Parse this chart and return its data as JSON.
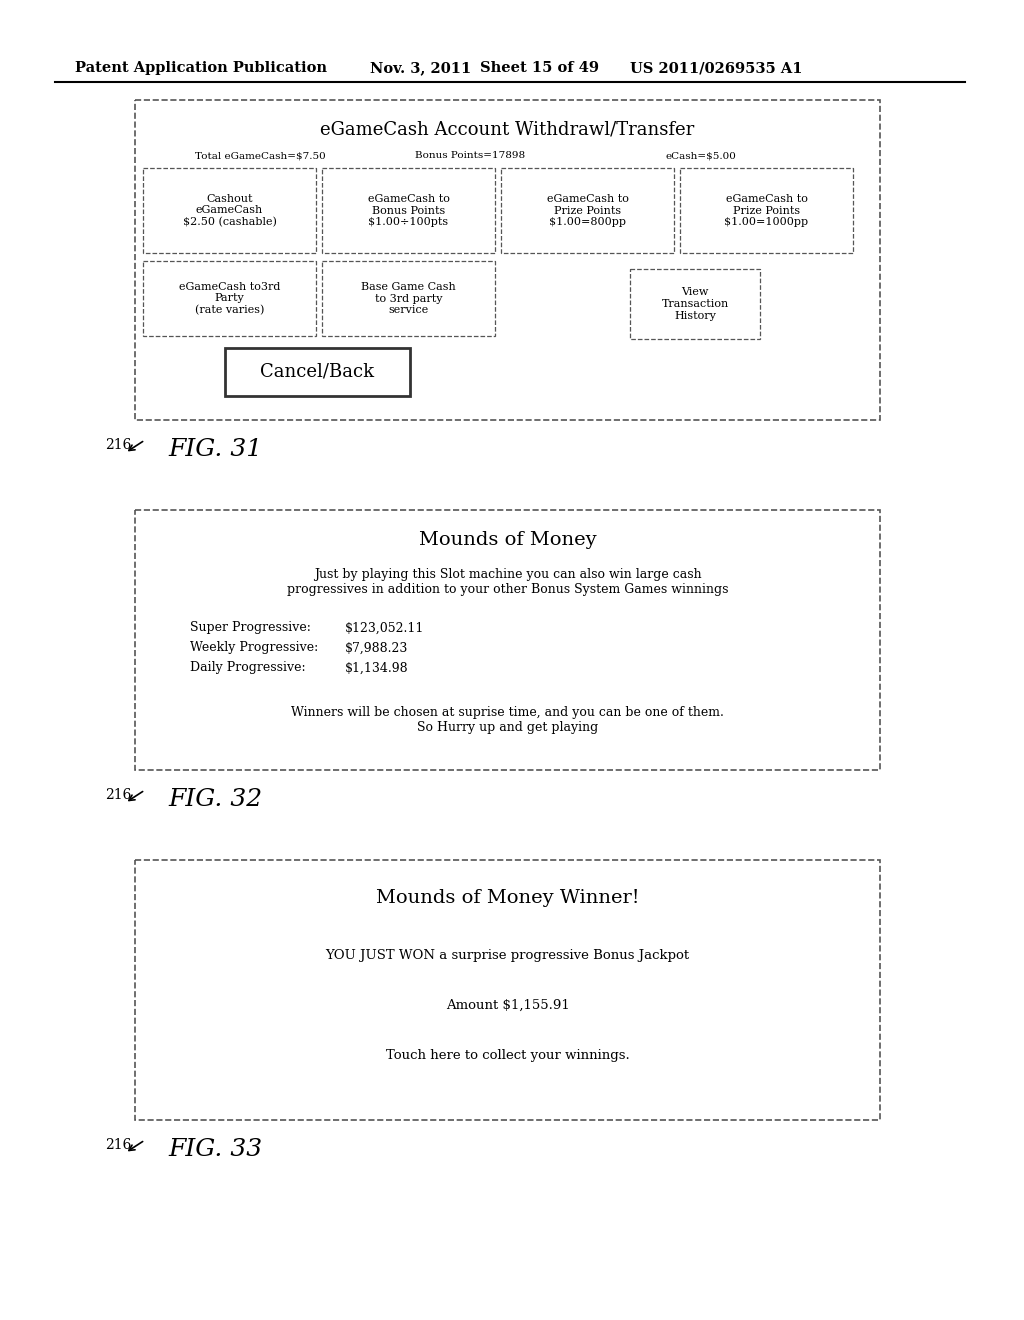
{
  "bg_color": "#ffffff",
  "header_text": "Patent Application Publication",
  "header_date": "Nov. 3, 2011",
  "header_sheet": "Sheet 15 of 49",
  "header_patent": "US 2011/0269535 A1",
  "fig31": {
    "label": "216",
    "fig_label": "FIG. 31",
    "title": "eGameCash Account Withdrawl/Transfer",
    "subtitle_left": "Total eGameCash=$7.50",
    "subtitle_mid": "Bonus Points=17898",
    "subtitle_right": "eCash=$5.00",
    "buttons_row1": [
      "Cashout\neGameCash\n$2.50 (cashable)",
      "eGameCash to\nBonus Points\n$1.00÷100pts",
      "eGameCash to\nPrize Points\n$1.00=800pp",
      "eGameCash to\nPrize Points\n$1.00=1000pp"
    ],
    "buttons_row2": [
      "eGameCash to3rd\nParty\n(rate varies)",
      "Base Game Cash\nto 3rd party\nservice"
    ],
    "cancel_btn": "Cancel/Back",
    "view_btn": "View\nTransaction\nHistory"
  },
  "fig32": {
    "label": "216",
    "fig_label": "FIG. 32",
    "title": "Mounds of Money",
    "desc": "Just by playing this Slot machine you can also win large cash\nprogressives in addition to your other Bonus System Games winnings",
    "progressives": [
      [
        "Super Progressive:",
        "$123,052.11"
      ],
      [
        "Weekly Progressive:",
        "$7,988.23"
      ],
      [
        "Daily Progressive:",
        "$1,134.98"
      ]
    ],
    "footer": "Winners will be chosen at suprise time, and you can be one of them.\nSo Hurry up and get playing"
  },
  "fig33": {
    "label": "216",
    "fig_label": "FIG. 33",
    "title": "Mounds of Money Winner!",
    "line1": "YOU JUST WON a surprise progressive Bonus Jackpot",
    "line2": "Amount $1,155.91",
    "line3": "Touch here to collect your winnings."
  }
}
